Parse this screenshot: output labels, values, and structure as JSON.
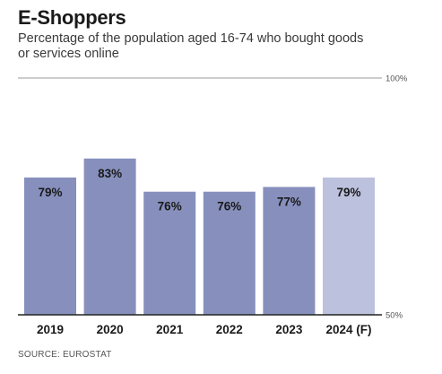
{
  "chart_data": {
    "type": "bar",
    "title": "E-Shoppers",
    "subtitle": "Percentage of the population aged 16-74 who bought goods or services online",
    "categories": [
      "2019",
      "2020",
      "2021",
      "2022",
      "2023",
      "2024 (F)"
    ],
    "values": [
      79,
      83,
      76,
      76,
      77,
      79
    ],
    "value_labels": [
      "79%",
      "83%",
      "76%",
      "76%",
      "77%",
      "79%"
    ],
    "ylim": [
      50,
      100
    ],
    "y_ticks": [
      {
        "value": 100,
        "label": "100%"
      },
      {
        "value": 50,
        "label": "50%"
      }
    ],
    "forecast_index": 5,
    "colors": {
      "bar": "#8790bd",
      "forecast_bar": "#bcc1dd",
      "axis": "#222222",
      "gridline": "#999999",
      "label": "#1a1a1a"
    },
    "grid": false,
    "source": "SOURCE: EUROSTAT"
  }
}
